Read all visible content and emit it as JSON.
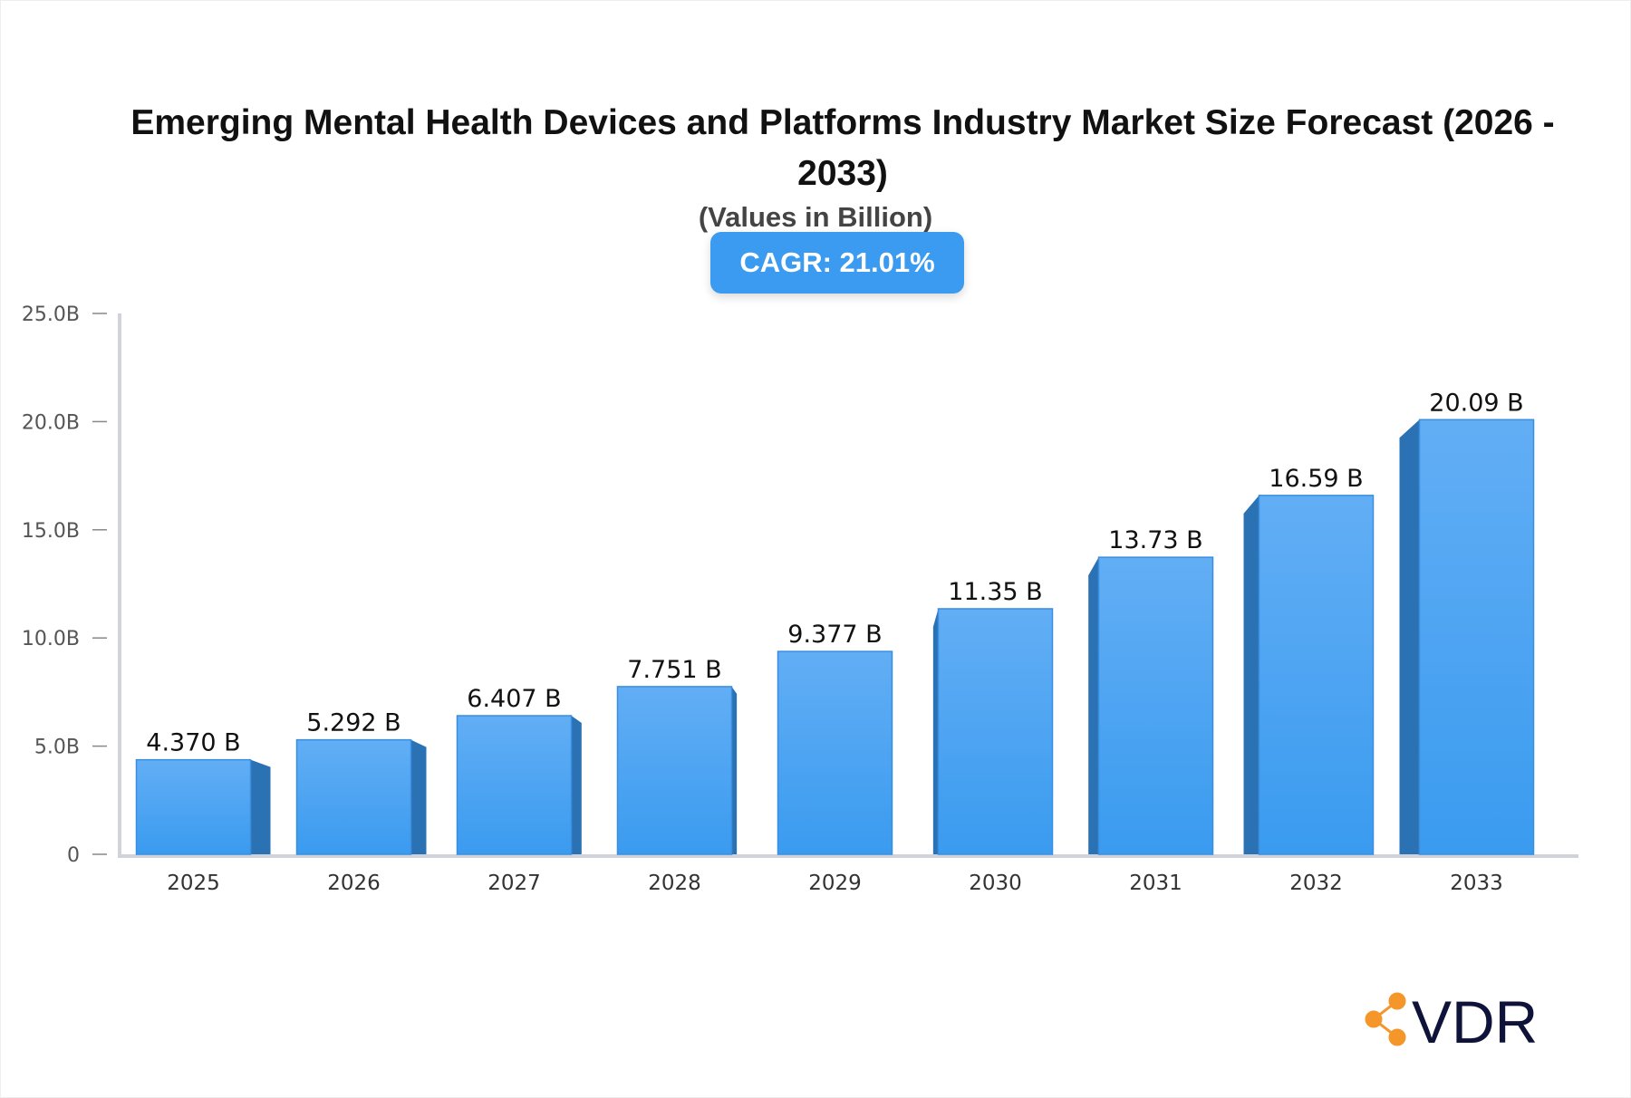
{
  "chart_data": {
    "type": "bar",
    "title": "Emerging Mental Health Devices and Platforms Industry Market Size Forecast (2026 - 2033)",
    "subtitle": "(Values in Billion)",
    "annotation": "CAGR: 21.01%",
    "categories": [
      "2025",
      "2026",
      "2027",
      "2028",
      "2029",
      "2030",
      "2031",
      "2032",
      "2033"
    ],
    "values": [
      4.37,
      5.292,
      6.407,
      7.751,
      9.377,
      11.35,
      13.73,
      16.59,
      20.09
    ],
    "data_labels": [
      "4.370 B",
      "5.292 B",
      "6.407 B",
      "7.751 B",
      "9.377 B",
      "11.35 B",
      "13.73 B",
      "16.59 B",
      "20.09 B"
    ],
    "ylim": [
      0,
      25
    ],
    "yticks": [
      0,
      5,
      10,
      15,
      20,
      25
    ],
    "ytick_labels": [
      "0",
      "5.0B",
      "10.0B",
      "15.0B",
      "20.0B",
      "25.0B"
    ],
    "xlabel": "",
    "ylabel": "",
    "grid": false,
    "colors": {
      "bar_top": "#62aef5",
      "bar_bottom": "#3a9bef",
      "bar_side": "#2b72b5",
      "badge": "#3b9bf0"
    }
  },
  "logo": {
    "text": "VDR",
    "text_color": "#0f1239",
    "icon_color": "#f5962a"
  }
}
